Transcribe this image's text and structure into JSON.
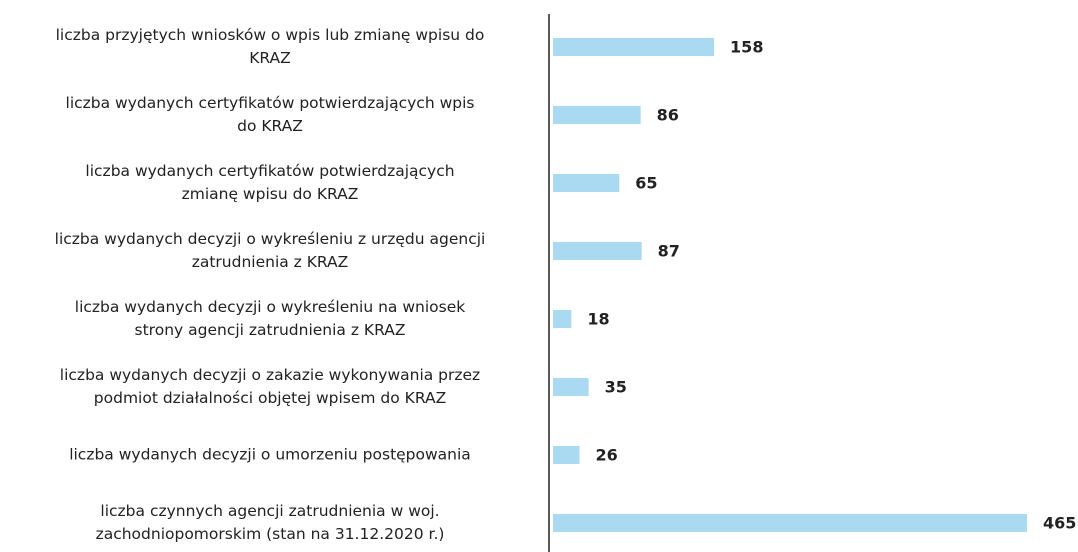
{
  "chart_data": {
    "type": "barh",
    "categories": [
      "liczba przyjętych wniosków o wpis lub zmianę wpisu do\nKRAZ",
      "liczba wydanych certyfikatów potwierdzających wpis\ndo KRAZ",
      "liczba wydanych certyfikatów potwierdzających\nzmianę wpisu do KRAZ",
      "liczba wydanych decyzji o wykreśleniu z urzędu agencji\nzatrudnienia z KRAZ",
      "liczba wydanych decyzji o wykreśleniu na wniosek\nstrony agencji zatrudnienia z KRAZ",
      "liczba wydanych decyzji o zakazie wykonywania przez\npodmiot działalności objętej wpisem do KRAZ",
      "liczba wydanych decyzji o umorzeniu postępowania",
      "liczba czynnych agencji zatrudnienia w woj.\nzachodniopomorskim (stan na 31.12.2020 r.)"
    ],
    "values": [
      158,
      86,
      65,
      87,
      18,
      35,
      26,
      465
    ],
    "color": "#aad9f2"
  }
}
